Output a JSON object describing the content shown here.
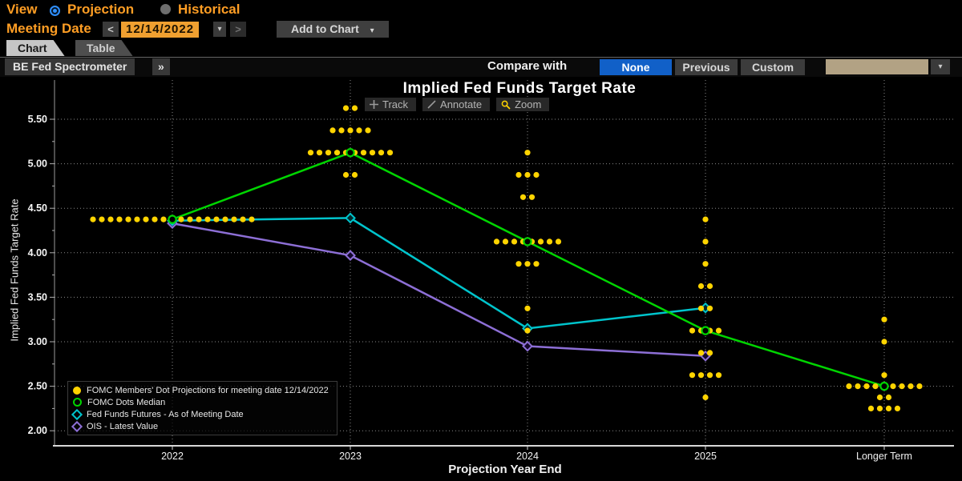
{
  "header": {
    "view_label": "View",
    "radios": [
      {
        "label": "Projection",
        "selected": true
      },
      {
        "label": "Historical",
        "selected": false
      }
    ],
    "meeting_date_label": "Meeting Date",
    "prev_arrow": "<",
    "next_arrow": ">",
    "caret": "▾",
    "date_value": "12/14/2022",
    "add_to_chart_label": "Add to Chart",
    "tabs": [
      {
        "label": "Chart",
        "active": true
      },
      {
        "label": "Table",
        "active": false
      }
    ],
    "source_label": "BE Fed Spectrometer",
    "expand_glyph": "»",
    "compare_with_label": "Compare with",
    "compare_options": [
      {
        "label": "None",
        "selected": true
      },
      {
        "label": "Previous",
        "selected": false
      },
      {
        "label": "Custom",
        "selected": false
      }
    ],
    "custom_select_value": ""
  },
  "chart_toolbar": {
    "track_label": "Track",
    "annotate_label": "Annotate",
    "zoom_label": "Zoom"
  },
  "chart_data": {
    "type": "scatter",
    "title": "Implied Fed Funds Target Rate",
    "xlabel": "Projection Year End",
    "ylabel": "Implied Fed Funds Target Rate",
    "ylim": [
      2.0,
      5.75
    ],
    "y_ticks": [
      5.5,
      5.0,
      4.5,
      4.0,
      3.5,
      3.0,
      2.5,
      2.0
    ],
    "grid": true,
    "legend_position": "bottom-left",
    "categories": [
      "2022",
      "2023",
      "2024",
      "2025",
      "Longer Term"
    ],
    "dot_projections": {
      "label": "FOMC Members' Dot Projections for meeting date 12/14/2022",
      "color": "#ffd400",
      "by_year": [
        {
          "year": "2022",
          "dots": [
            {
              "rate": 4.375,
              "count": 19
            }
          ]
        },
        {
          "year": "2023",
          "dots": [
            {
              "rate": 5.625,
              "count": 2
            },
            {
              "rate": 5.375,
              "count": 5
            },
            {
              "rate": 5.125,
              "count": 10
            },
            {
              "rate": 4.875,
              "count": 2
            }
          ]
        },
        {
          "year": "2024",
          "dots": [
            {
              "rate": 5.125,
              "count": 1
            },
            {
              "rate": 4.875,
              "count": 3
            },
            {
              "rate": 4.625,
              "count": 2
            },
            {
              "rate": 4.125,
              "count": 8
            },
            {
              "rate": 3.875,
              "count": 3
            },
            {
              "rate": 3.375,
              "count": 1
            },
            {
              "rate": 3.125,
              "count": 1
            }
          ]
        },
        {
          "year": "2025",
          "dots": [
            {
              "rate": 4.375,
              "count": 1
            },
            {
              "rate": 4.125,
              "count": 1
            },
            {
              "rate": 3.875,
              "count": 1
            },
            {
              "rate": 3.625,
              "count": 2
            },
            {
              "rate": 3.375,
              "count": 2
            },
            {
              "rate": 3.125,
              "count": 4
            },
            {
              "rate": 2.875,
              "count": 2
            },
            {
              "rate": 2.625,
              "count": 4
            },
            {
              "rate": 2.375,
              "count": 1
            }
          ]
        },
        {
          "year": "Longer Term",
          "dots": [
            {
              "rate": 3.25,
              "count": 1
            },
            {
              "rate": 3.0,
              "count": 1
            },
            {
              "rate": 2.625,
              "count": 1
            },
            {
              "rate": 2.5,
              "count": 9
            },
            {
              "rate": 2.375,
              "count": 2
            },
            {
              "rate": 2.25,
              "count": 4
            }
          ]
        }
      ]
    },
    "series": [
      {
        "name": "FOMC Dots Median",
        "color": "#00d500",
        "marker": "circle-open",
        "values": [
          4.375,
          5.125,
          4.125,
          3.125,
          2.5
        ]
      },
      {
        "name": "Fed Funds Futures - As of Meeting Date",
        "color": "#00c4cc",
        "marker": "diamond",
        "values": [
          4.36,
          4.39,
          3.15,
          3.38,
          null
        ]
      },
      {
        "name": "OIS - Latest Value",
        "color": "#8d6fd6",
        "marker": "diamond",
        "values": [
          4.33,
          3.97,
          2.95,
          2.84,
          null
        ]
      }
    ]
  }
}
